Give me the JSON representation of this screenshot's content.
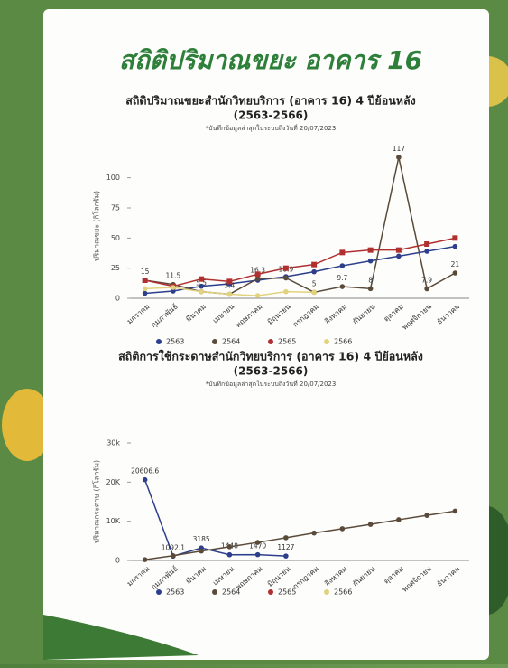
{
  "title": "สถิติปริมาณขยะ อาคาร 16",
  "chart_data": [
    {
      "type": "line",
      "title": "สถิติปริมาณขยะสำนักวิทยบริการ (อาคาร 16) 4 ปีย้อนหลัง",
      "subtitle": "(2563-2566)",
      "note": "*บันทึกข้อมูลล่าสุดในระบบถึงวันที่ 20/07/2023",
      "y_label": "ปริมาณขยะ (กิโลกรัม)",
      "categories": [
        "มกราคม",
        "กุมภาพันธ์",
        "มีนาคม",
        "เมษายน",
        "พฤษภาคม",
        "มิถุนายน",
        "กรกฎาคม",
        "สิงหาคม",
        "กันยายน",
        "ตุลาคม",
        "พฤศจิกายน",
        "ธันวาคม"
      ],
      "ylim": [
        0,
        120
      ],
      "yticks": [
        0,
        25,
        50,
        75,
        100
      ],
      "series": [
        {
          "name": "2563",
          "color": "#2c3e8c",
          "values": [
            4.1,
            6,
            10,
            12,
            15,
            18,
            22,
            27,
            31,
            35,
            39,
            43
          ]
        },
        {
          "name": "2564",
          "color": "#5a4a3a",
          "labels": true,
          "values": [
            15,
            11.5,
            5.5,
            3.4,
            16.3,
            16.9,
            5,
            9.7,
            8,
            117,
            7.9,
            21
          ]
        },
        {
          "name": "2565",
          "color": "#b03030",
          "values": [
            15,
            10,
            16,
            14,
            20,
            25,
            28,
            38,
            40,
            40,
            45,
            50
          ]
        },
        {
          "name": "2566",
          "color": "#e2d27e",
          "values": [
            8,
            9,
            5.5,
            3.4,
            2.2,
            5.5,
            5,
            null,
            null,
            null,
            null,
            null
          ]
        }
      ]
    },
    {
      "type": "line",
      "title": "สถิติการใช้กระดาษสำนักวิทยบริการ (อาคาร 16) 4 ปีย้อนหลัง",
      "subtitle": "(2563-2566)",
      "note": "*บันทึกข้อมูลล่าสุดในระบบถึงวันที่ 20/07/2023",
      "y_label": "ปริมาณกระดาษ (กิโลกรัม)",
      "categories": [
        "มกราคม",
        "กุมภาพันธ์",
        "มีนาคม",
        "เมษายน",
        "พฤษภาคม",
        "มิถุนายน",
        "กรกฎาคม",
        "สิงหาคม",
        "กันยายน",
        "ตุลาคม",
        "พฤศจิกายน",
        "ธันวาคม"
      ],
      "ylim": [
        0,
        30000
      ],
      "yticks": [
        0,
        {
          "value": 10000,
          "label": "10K"
        },
        {
          "value": 20000,
          "label": "20K"
        },
        {
          "value": 30000,
          "label": "30k"
        }
      ],
      "series": [
        {
          "name": "2563",
          "color": "#2c3e8c",
          "labels": true,
          "values": [
            20606.6,
            1092.1,
            3185,
            1448,
            1470,
            1127,
            null,
            null,
            null,
            null,
            null,
            null
          ]
        },
        {
          "name": "2564",
          "color": "#5a4a3a",
          "values": [
            200,
            1200,
            2400,
            3500,
            4600,
            5800,
            7000,
            8100,
            9200,
            10400,
            11500,
            12600
          ]
        },
        {
          "name": "2565",
          "color": "#b03030",
          "values": [
            null,
            null,
            null,
            null,
            null,
            null,
            null,
            null,
            null,
            null,
            null,
            null
          ]
        },
        {
          "name": "2566",
          "color": "#e2d27e",
          "values": [
            null,
            null,
            null,
            null,
            null,
            null,
            null,
            null,
            null,
            null,
            null,
            null
          ]
        }
      ]
    }
  ]
}
